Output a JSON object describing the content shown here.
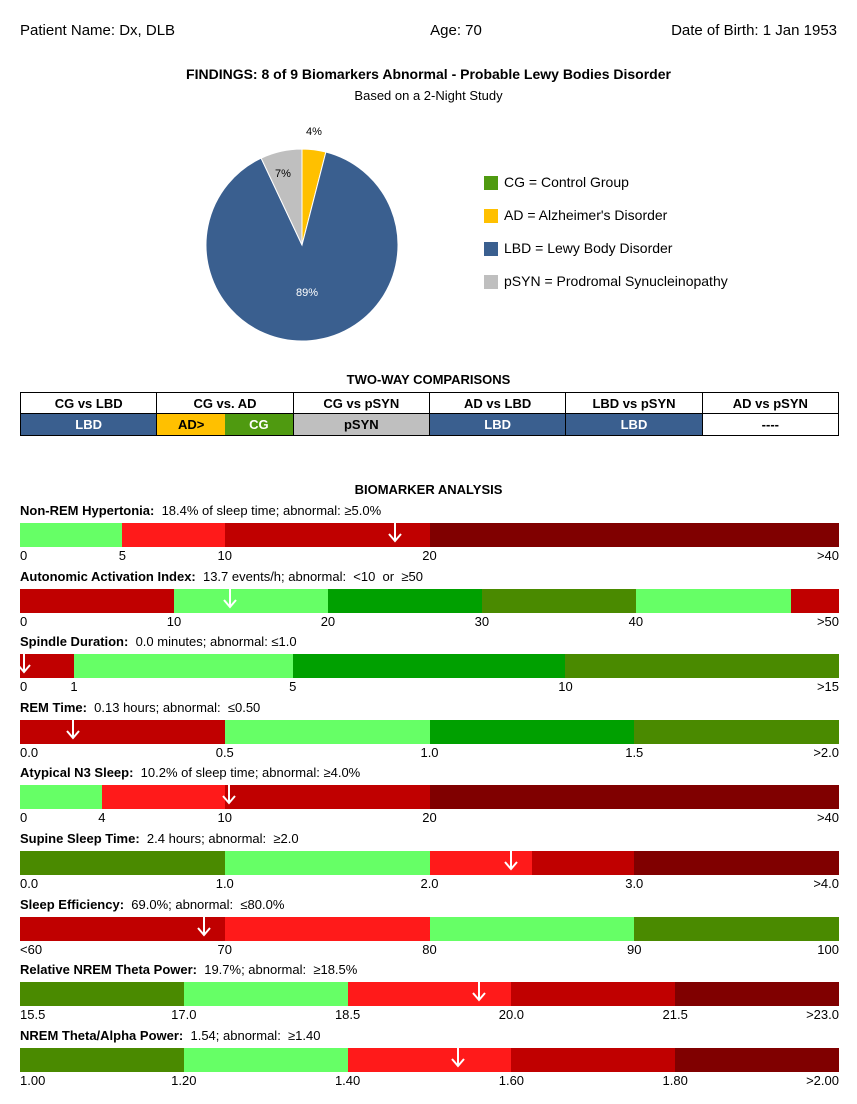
{
  "header": {
    "patient": "Patient Name: Dx, DLB",
    "age": "Age: 70",
    "dob": "Date of Birth: 1 Jan 1953"
  },
  "findings": {
    "title": "FINDINGS: 8 of 9 Biomarkers Abnormal - Probable Lewy Bodies Disorder",
    "subtitle": "Based on a 2-Night Study"
  },
  "chart_data": {
    "type": "pie",
    "slices": [
      {
        "label": "AD",
        "value": 4,
        "text": "4%",
        "color": "#FFC000"
      },
      {
        "label": "LBD",
        "value": 89,
        "text": "89%",
        "color": "#3A5F8F"
      },
      {
        "label": "pSYN",
        "value": 7,
        "text": "7%",
        "color": "#BFBFBF"
      }
    ],
    "legend": [
      {
        "text": "CG = Control Group",
        "color": "#4F9A10"
      },
      {
        "text": "AD = Alzheimer's Disorder",
        "color": "#FFC000"
      },
      {
        "text": "LBD = Lewy Body Disorder",
        "color": "#3A5F8F"
      },
      {
        "text": "pSYN = Prodromal Synucleinopathy",
        "color": "#BFBFBF"
      }
    ]
  },
  "comparisons": {
    "title": "TWO-WAY COMPARISONS",
    "headers": [
      "CG vs LBD",
      "CG vs. AD",
      "CG vs pSYN",
      "AD vs LBD",
      "LBD vs pSYN",
      "AD vs pSYN"
    ],
    "results": [
      {
        "text": "LBD",
        "color": "#3A5F8F",
        "fg": "#ffffff"
      },
      {
        "split": [
          {
            "text": "AD>",
            "color": "#FFC000",
            "fg": "#000000"
          },
          {
            "text": "CG",
            "color": "#4F9A10",
            "fg": "#ffffff"
          }
        ]
      },
      {
        "text": "pSYN",
        "color": "#BFBFBF",
        "fg": "#000000"
      },
      {
        "text": "LBD",
        "color": "#3A5F8F",
        "fg": "#ffffff"
      },
      {
        "text": "LBD",
        "color": "#3A5F8F",
        "fg": "#ffffff"
      },
      {
        "text": "----",
        "color": "#ffffff",
        "fg": "#000000"
      }
    ]
  },
  "biomarkers": {
    "title": "BIOMARKER ANALYSIS",
    "items": [
      {
        "name": "Non-REM Hypertonia:",
        "desc": "18.4% of sleep time; abnormal: ≥5.0%",
        "arrow": 0.458,
        "segments": [
          {
            "start": 0,
            "end": 0.125,
            "color": "#66FF66"
          },
          {
            "start": 0.125,
            "end": 0.25,
            "color": "#FF1A1A"
          },
          {
            "start": 0.25,
            "end": 0.5,
            "color": "#C00000"
          },
          {
            "start": 0.5,
            "end": 1.0,
            "color": "#800000"
          }
        ],
        "ticks": [
          {
            "label": "0",
            "at": 0
          },
          {
            "label": "5",
            "at": 0.125
          },
          {
            "label": "10",
            "at": 0.25
          },
          {
            "label": "20",
            "at": 0.5
          },
          {
            "label": ">40",
            "at": 1.0
          }
        ]
      },
      {
        "name": "Autonomic Activation Index:",
        "desc": "13.7 events/h; abnormal:  <10  or  ≥50",
        "arrow": 0.257,
        "segments": [
          {
            "start": 0,
            "end": 0.188,
            "color": "#C00000"
          },
          {
            "start": 0.188,
            "end": 0.376,
            "color": "#66FF66"
          },
          {
            "start": 0.376,
            "end": 0.564,
            "color": "#00A000"
          },
          {
            "start": 0.564,
            "end": 0.752,
            "color": "#4A8A00"
          },
          {
            "start": 0.752,
            "end": 0.941,
            "color": "#66FF66"
          },
          {
            "start": 0.941,
            "end": 1.0,
            "color": "#C00000"
          }
        ],
        "ticks": [
          {
            "label": "0",
            "at": 0
          },
          {
            "label": "10",
            "at": 0.188
          },
          {
            "label": "20",
            "at": 0.376
          },
          {
            "label": "30",
            "at": 0.564
          },
          {
            "label": "40",
            "at": 0.752
          },
          {
            "label": ">50",
            "at": 1.0
          }
        ]
      },
      {
        "name": "Spindle Duration:",
        "desc": "0.0 minutes; abnormal: ≤1.0",
        "arrow": 0.0,
        "segments": [
          {
            "start": 0,
            "end": 0.066,
            "color": "#C00000"
          },
          {
            "start": 0.066,
            "end": 0.333,
            "color": "#66FF66"
          },
          {
            "start": 0.333,
            "end": 0.666,
            "color": "#00A000"
          },
          {
            "start": 0.666,
            "end": 1.0,
            "color": "#4A8A00"
          }
        ],
        "ticks": [
          {
            "label": "0",
            "at": 0
          },
          {
            "label": "1",
            "at": 0.066
          },
          {
            "label": "5",
            "at": 0.333
          },
          {
            "label": "10",
            "at": 0.666
          },
          {
            "label": ">15",
            "at": 1.0
          }
        ]
      },
      {
        "name": "REM Time:",
        "desc": "0.13 hours; abnormal:  ≤0.50",
        "arrow": 0.065,
        "segments": [
          {
            "start": 0,
            "end": 0.25,
            "color": "#C00000"
          },
          {
            "start": 0.25,
            "end": 0.5,
            "color": "#66FF66"
          },
          {
            "start": 0.5,
            "end": 0.75,
            "color": "#00A000"
          },
          {
            "start": 0.75,
            "end": 1.0,
            "color": "#4A8A00"
          }
        ],
        "ticks": [
          {
            "label": "0.0",
            "at": 0
          },
          {
            "label": "0.5",
            "at": 0.25
          },
          {
            "label": "1.0",
            "at": 0.5
          },
          {
            "label": "1.5",
            "at": 0.75
          },
          {
            "label": ">2.0",
            "at": 1.0
          }
        ]
      },
      {
        "name": "Atypical N3 Sleep:",
        "desc": "10.2% of sleep time; abnormal: ≥4.0%",
        "arrow": 0.255,
        "segments": [
          {
            "start": 0,
            "end": 0.1,
            "color": "#66FF66"
          },
          {
            "start": 0.1,
            "end": 0.25,
            "color": "#FF1A1A"
          },
          {
            "start": 0.25,
            "end": 0.5,
            "color": "#C00000"
          },
          {
            "start": 0.5,
            "end": 1.0,
            "color": "#800000"
          }
        ],
        "ticks": [
          {
            "label": "0",
            "at": 0
          },
          {
            "label": "4",
            "at": 0.1
          },
          {
            "label": "10",
            "at": 0.25
          },
          {
            "label": "20",
            "at": 0.5
          },
          {
            "label": ">40",
            "at": 1.0
          }
        ]
      },
      {
        "name": "Supine Sleep Time:",
        "desc": "2.4 hours; abnormal:  ≥2.0",
        "arrow": 0.6,
        "segments": [
          {
            "start": 0,
            "end": 0.25,
            "color": "#4A8A00"
          },
          {
            "start": 0.25,
            "end": 0.5,
            "color": "#66FF66"
          },
          {
            "start": 0.5,
            "end": 0.625,
            "color": "#FF1A1A"
          },
          {
            "start": 0.625,
            "end": 0.75,
            "color": "#C00000"
          },
          {
            "start": 0.75,
            "end": 1.0,
            "color": "#800000"
          }
        ],
        "ticks": [
          {
            "label": "0.0",
            "at": 0
          },
          {
            "label": "1.0",
            "at": 0.25
          },
          {
            "label": "2.0",
            "at": 0.5
          },
          {
            "label": "3.0",
            "at": 0.75
          },
          {
            "label": ">4.0",
            "at": 1.0
          }
        ]
      },
      {
        "name": "Sleep Efficiency:",
        "desc": "69.0%; abnormal:  ≤80.0%",
        "arrow": 0.225,
        "segments": [
          {
            "start": 0,
            "end": 0.25,
            "color": "#C00000"
          },
          {
            "start": 0.25,
            "end": 0.5,
            "color": "#FF1A1A"
          },
          {
            "start": 0.5,
            "end": 0.75,
            "color": "#66FF66"
          },
          {
            "start": 0.75,
            "end": 1.0,
            "color": "#4A8A00"
          }
        ],
        "ticks": [
          {
            "label": "<60",
            "at": 0
          },
          {
            "label": "70",
            "at": 0.25
          },
          {
            "label": "80",
            "at": 0.5
          },
          {
            "label": "90",
            "at": 0.75
          },
          {
            "label": "100",
            "at": 1.0
          }
        ]
      },
      {
        "name": "Relative NREM Theta Power:",
        "desc": "19.7%; abnormal:  ≥18.5%",
        "arrow": 0.56,
        "segments": [
          {
            "start": 0,
            "end": 0.2,
            "color": "#4A8A00"
          },
          {
            "start": 0.2,
            "end": 0.4,
            "color": "#66FF66"
          },
          {
            "start": 0.4,
            "end": 0.6,
            "color": "#FF1A1A"
          },
          {
            "start": 0.6,
            "end": 0.8,
            "color": "#C00000"
          },
          {
            "start": 0.8,
            "end": 1.0,
            "color": "#800000"
          }
        ],
        "ticks": [
          {
            "label": "15.5",
            "at": 0
          },
          {
            "label": "17.0",
            "at": 0.2
          },
          {
            "label": "18.5",
            "at": 0.4
          },
          {
            "label": "20.0",
            "at": 0.6
          },
          {
            "label": "21.5",
            "at": 0.8
          },
          {
            "label": ">23.0",
            "at": 1.0
          }
        ]
      },
      {
        "name": "NREM Theta/Alpha Power:",
        "desc": "1.54; abnormal:  ≥1.40",
        "arrow": 0.535,
        "segments": [
          {
            "start": 0,
            "end": 0.2,
            "color": "#4A8A00"
          },
          {
            "start": 0.2,
            "end": 0.4,
            "color": "#66FF66"
          },
          {
            "start": 0.4,
            "end": 0.6,
            "color": "#FF1A1A"
          },
          {
            "start": 0.6,
            "end": 0.8,
            "color": "#C00000"
          },
          {
            "start": 0.8,
            "end": 1.0,
            "color": "#800000"
          }
        ],
        "ticks": [
          {
            "label": "1.00",
            "at": 0
          },
          {
            "label": "1.20",
            "at": 0.2
          },
          {
            "label": "1.40",
            "at": 0.4
          },
          {
            "label": "1.60",
            "at": 0.6
          },
          {
            "label": "1.80",
            "at": 0.8
          },
          {
            "label": ">2.00",
            "at": 1.0
          }
        ]
      }
    ]
  }
}
